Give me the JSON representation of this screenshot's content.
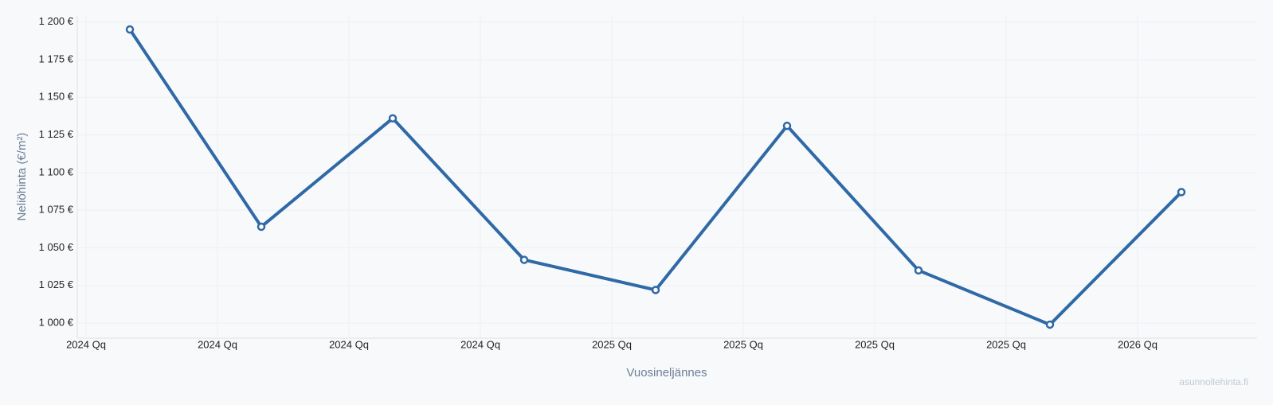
{
  "chart_data": {
    "type": "line",
    "y_label": "Neliöhinta (€/m²)",
    "x_label": "Vuosineljännes",
    "watermark": "asunnollehinta.fi",
    "categories": [
      "2024 Qq",
      "2024 Qq",
      "2024 Qq",
      "2024 Qq",
      "2025 Qq",
      "2025 Qq",
      "2025 Qq",
      "2025 Qq",
      "2026 Qq"
    ],
    "series": [
      {
        "color": "#2f69a6",
        "values": [
          1195,
          1064,
          1136,
          1042,
          1022,
          1131,
          1035,
          999,
          1087
        ]
      }
    ],
    "ylim": [
      990,
      1204
    ],
    "yticks": [
      {
        "value": 1000,
        "label": "1 000 €"
      },
      {
        "value": 1025,
        "label": "1 025 €"
      },
      {
        "value": 1050,
        "label": "1 050 €"
      },
      {
        "value": 1075,
        "label": "1 075 €"
      },
      {
        "value": 1100,
        "label": "1 100 €"
      },
      {
        "value": 1125,
        "label": "1 125 €"
      },
      {
        "value": 1150,
        "label": "1 150 €"
      },
      {
        "value": 1175,
        "label": "1 175 €"
      },
      {
        "value": 1200,
        "label": "1 200 €"
      }
    ],
    "grid": true
  }
}
